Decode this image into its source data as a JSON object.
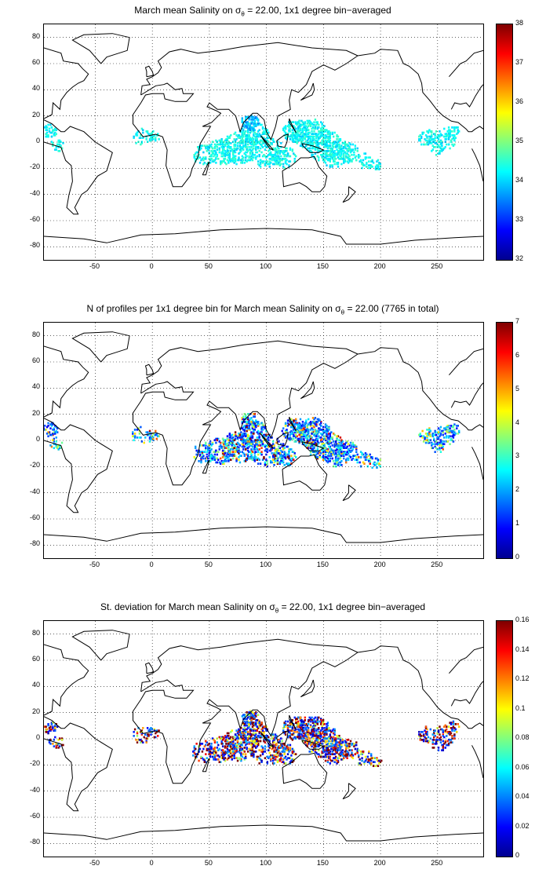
{
  "panels": [
    {
      "title_main": "March mean Salinity on σ",
      "title_sub": "θ",
      "title_rest": " = 22.00, 1x1 degree bin−averaged",
      "colorbar_ticks": [
        "38",
        "37",
        "36",
        "35",
        "34",
        "33",
        "32"
      ],
      "variable": "mean",
      "color_range": [
        32,
        38
      ]
    },
    {
      "title_main": "N of profiles per 1x1 degree bin for March mean Salinity on σ",
      "title_sub": "θ",
      "title_rest": " = 22.00 (7765 in total)",
      "colorbar_ticks": [
        "7",
        "6",
        "5",
        "4",
        "3",
        "2",
        "1",
        "0"
      ],
      "variable": "count",
      "color_range": [
        0,
        7
      ]
    },
    {
      "title_main": "St. deviation for March mean Salinity on σ",
      "title_sub": "θ",
      "title_rest": " = 22.00, 1x1 degree bin−averaged",
      "colorbar_ticks": [
        "0.16",
        "0.14",
        "0.12",
        "0.1",
        "0.08",
        "0.06",
        "0.04",
        "0.02",
        "0"
      ],
      "variable": "std",
      "color_range": [
        0,
        0.16
      ]
    }
  ],
  "axes": {
    "x_ticks": [
      "-50",
      "0",
      "50",
      "100",
      "150",
      "200",
      "250"
    ],
    "y_ticks": [
      "80",
      "60",
      "40",
      "20",
      "0",
      "-20",
      "-40",
      "-60",
      "-80"
    ],
    "x_range": [
      -95,
      290
    ],
    "y_range": [
      -90,
      90
    ],
    "grid": true
  },
  "colors": {
    "coast": "#000000",
    "grid": "#000000",
    "colormap": "jet"
  }
}
